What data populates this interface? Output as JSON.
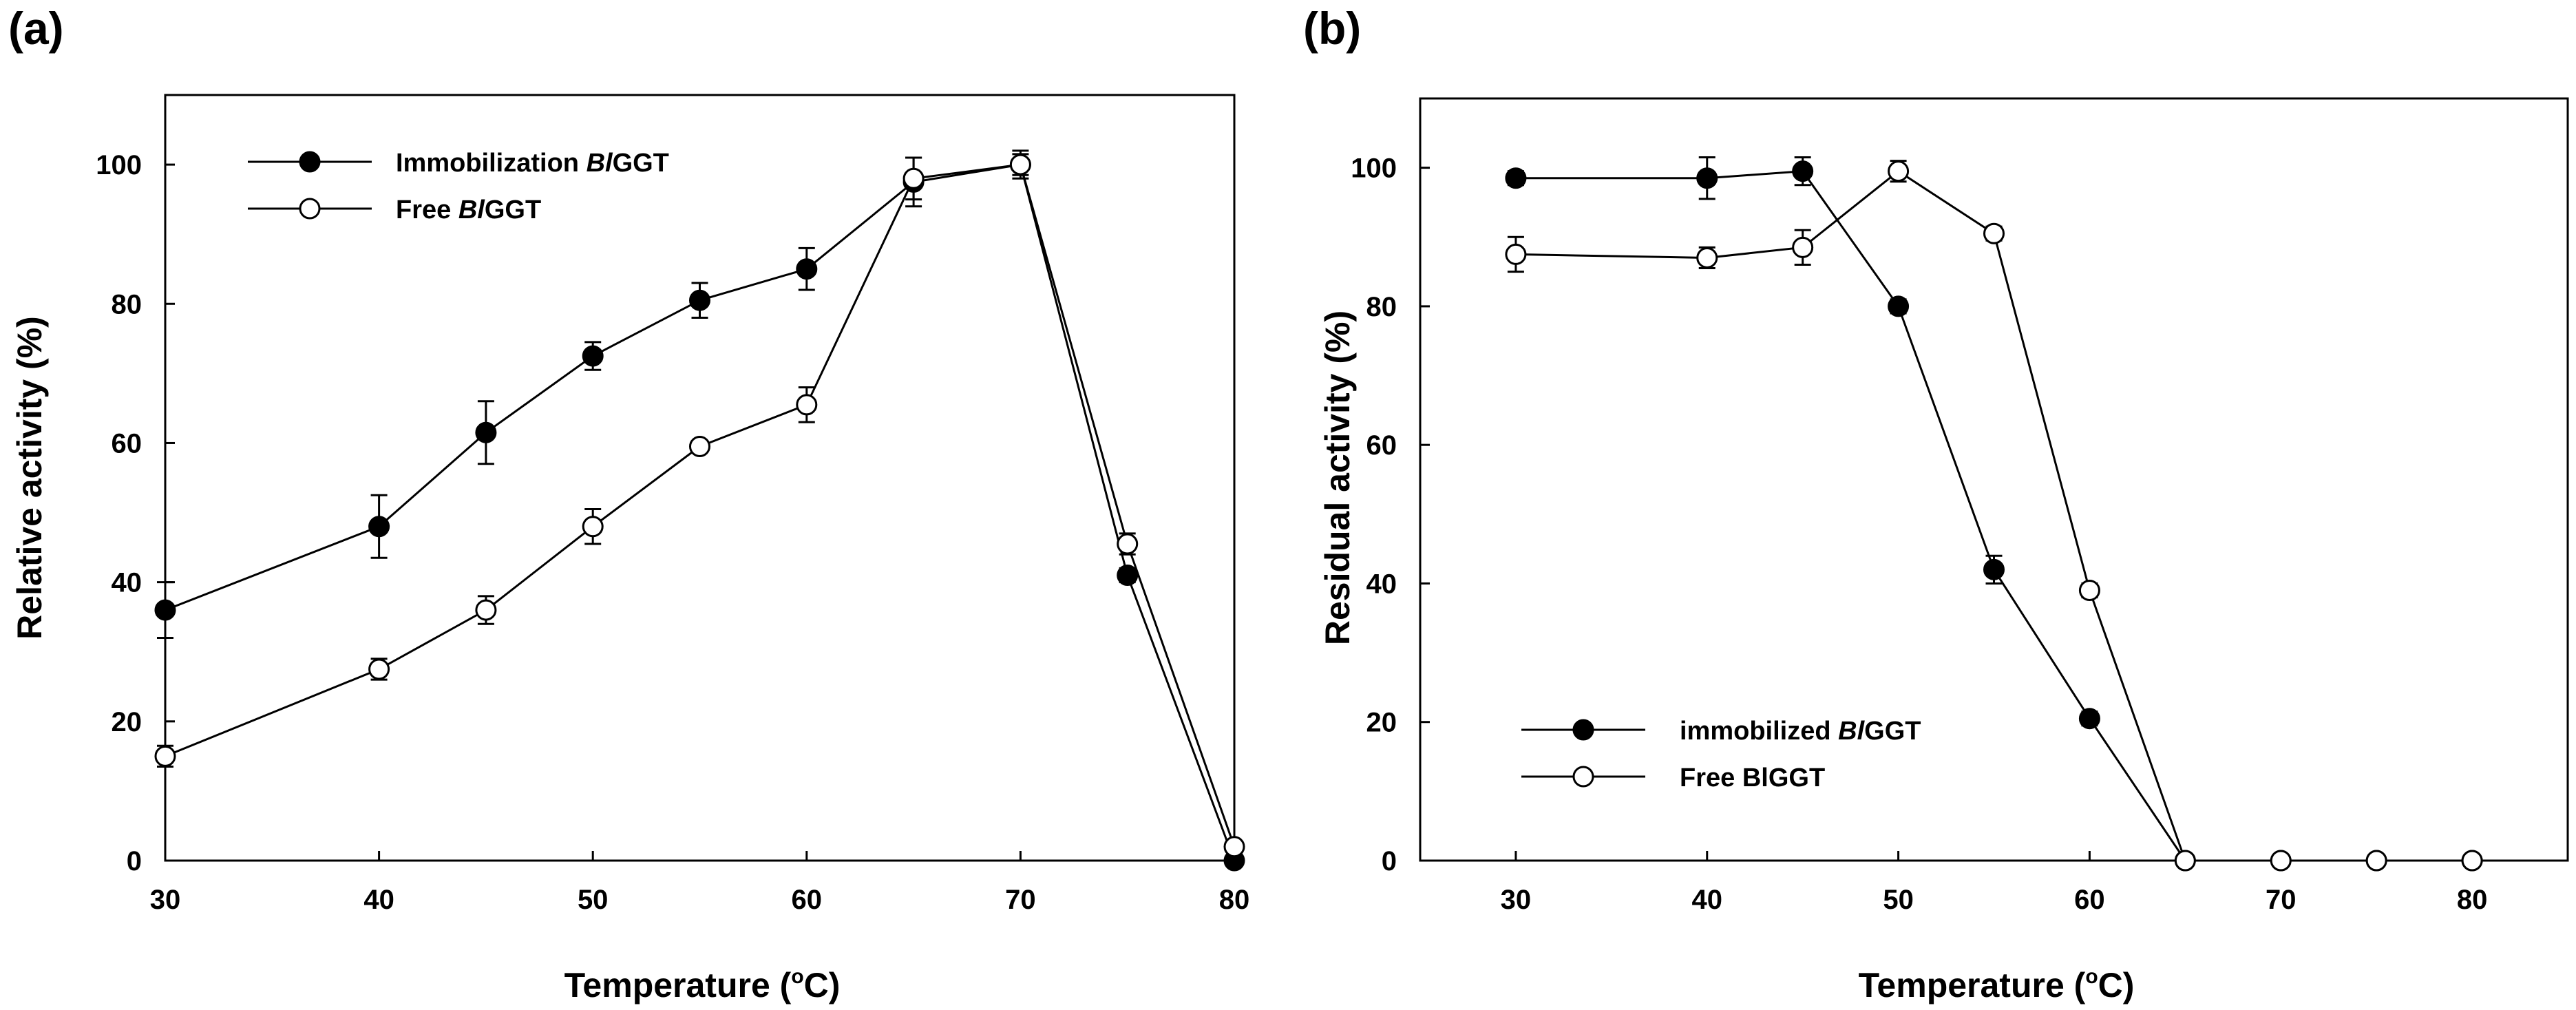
{
  "chart_data": [
    {
      "type": "line",
      "panel_label": "(a)",
      "xlabel": "Temperature (",
      "xlabel_sup": "o",
      "xlabel_end": "C)",
      "ylabel": "Relative activity (%)",
      "xlim": [
        30,
        80
      ],
      "ylim": [
        0,
        110
      ],
      "xticks": [
        30,
        40,
        50,
        60,
        70,
        80
      ],
      "yticks": [
        0,
        20,
        40,
        60,
        80,
        100
      ],
      "legend_position": "top-left",
      "series": [
        {
          "name": "Immobilization BlGGT",
          "legend_prefix": "Immobilization ",
          "legend_italic": "Bl",
          "legend_suffix": "GGT",
          "marker": "filled",
          "x": [
            30,
            40,
            45,
            50,
            55,
            60,
            65,
            70,
            75,
            80
          ],
          "y": [
            36,
            48,
            61.5,
            72.5,
            80.5,
            85,
            97.5,
            100,
            41,
            0
          ],
          "err": [
            4,
            4.5,
            4.5,
            2,
            2.5,
            3,
            3.5,
            2,
            1,
            0
          ]
        },
        {
          "name": "Free BlGGT",
          "legend_prefix": "Free ",
          "legend_italic": "Bl",
          "legend_suffix": "GGT",
          "marker": "open",
          "x": [
            30,
            40,
            45,
            50,
            55,
            60,
            65,
            70,
            75,
            80
          ],
          "y": [
            15,
            27.5,
            36,
            48,
            59.5,
            65.5,
            98,
            100,
            45.5,
            2
          ],
          "err": [
            1.5,
            1.5,
            2,
            2.5,
            0.5,
            2.5,
            3,
            1.5,
            1.5,
            0.5
          ]
        }
      ]
    },
    {
      "type": "line",
      "panel_label": "(b)",
      "xlabel": "Temperature (",
      "xlabel_sup": "o",
      "xlabel_end": "C)",
      "ylabel": "Residual activity (%)",
      "xlim": [
        25,
        85
      ],
      "ylim": [
        0,
        110
      ],
      "xticks": [
        30,
        40,
        50,
        60,
        70,
        80
      ],
      "xtick_labels": [
        "30",
        "40",
        "50",
        "60",
        "70",
        "80"
      ],
      "yticks": [
        0,
        20,
        40,
        60,
        80,
        100
      ],
      "legend_position": "bottom-left",
      "series": [
        {
          "name": "immobilized BlGGT",
          "legend_prefix": "immobilized ",
          "legend_italic": "Bl",
          "legend_suffix": "GGT",
          "marker": "filled",
          "x": [
            30,
            40,
            45,
            50,
            55,
            60,
            65,
            70,
            75,
            80
          ],
          "y": [
            98.5,
            98.5,
            99.5,
            80,
            42,
            20.5,
            0,
            0,
            0,
            0
          ],
          "err": [
            1,
            3,
            2,
            1,
            2,
            1,
            0,
            0,
            0,
            0
          ]
        },
        {
          "name": "Free BlGGT",
          "legend_prefix": "Free ",
          "legend_italic": "",
          "legend_suffix": "BlGGT",
          "marker": "open",
          "x": [
            30,
            40,
            45,
            50,
            55,
            60,
            65,
            70,
            75,
            80
          ],
          "y": [
            87.5,
            87,
            88.5,
            99.5,
            90.5,
            39,
            0,
            0,
            0,
            0
          ],
          "err": [
            2.5,
            1.5,
            2.5,
            1.5,
            1,
            1,
            0,
            0,
            0,
            0
          ]
        }
      ]
    }
  ]
}
